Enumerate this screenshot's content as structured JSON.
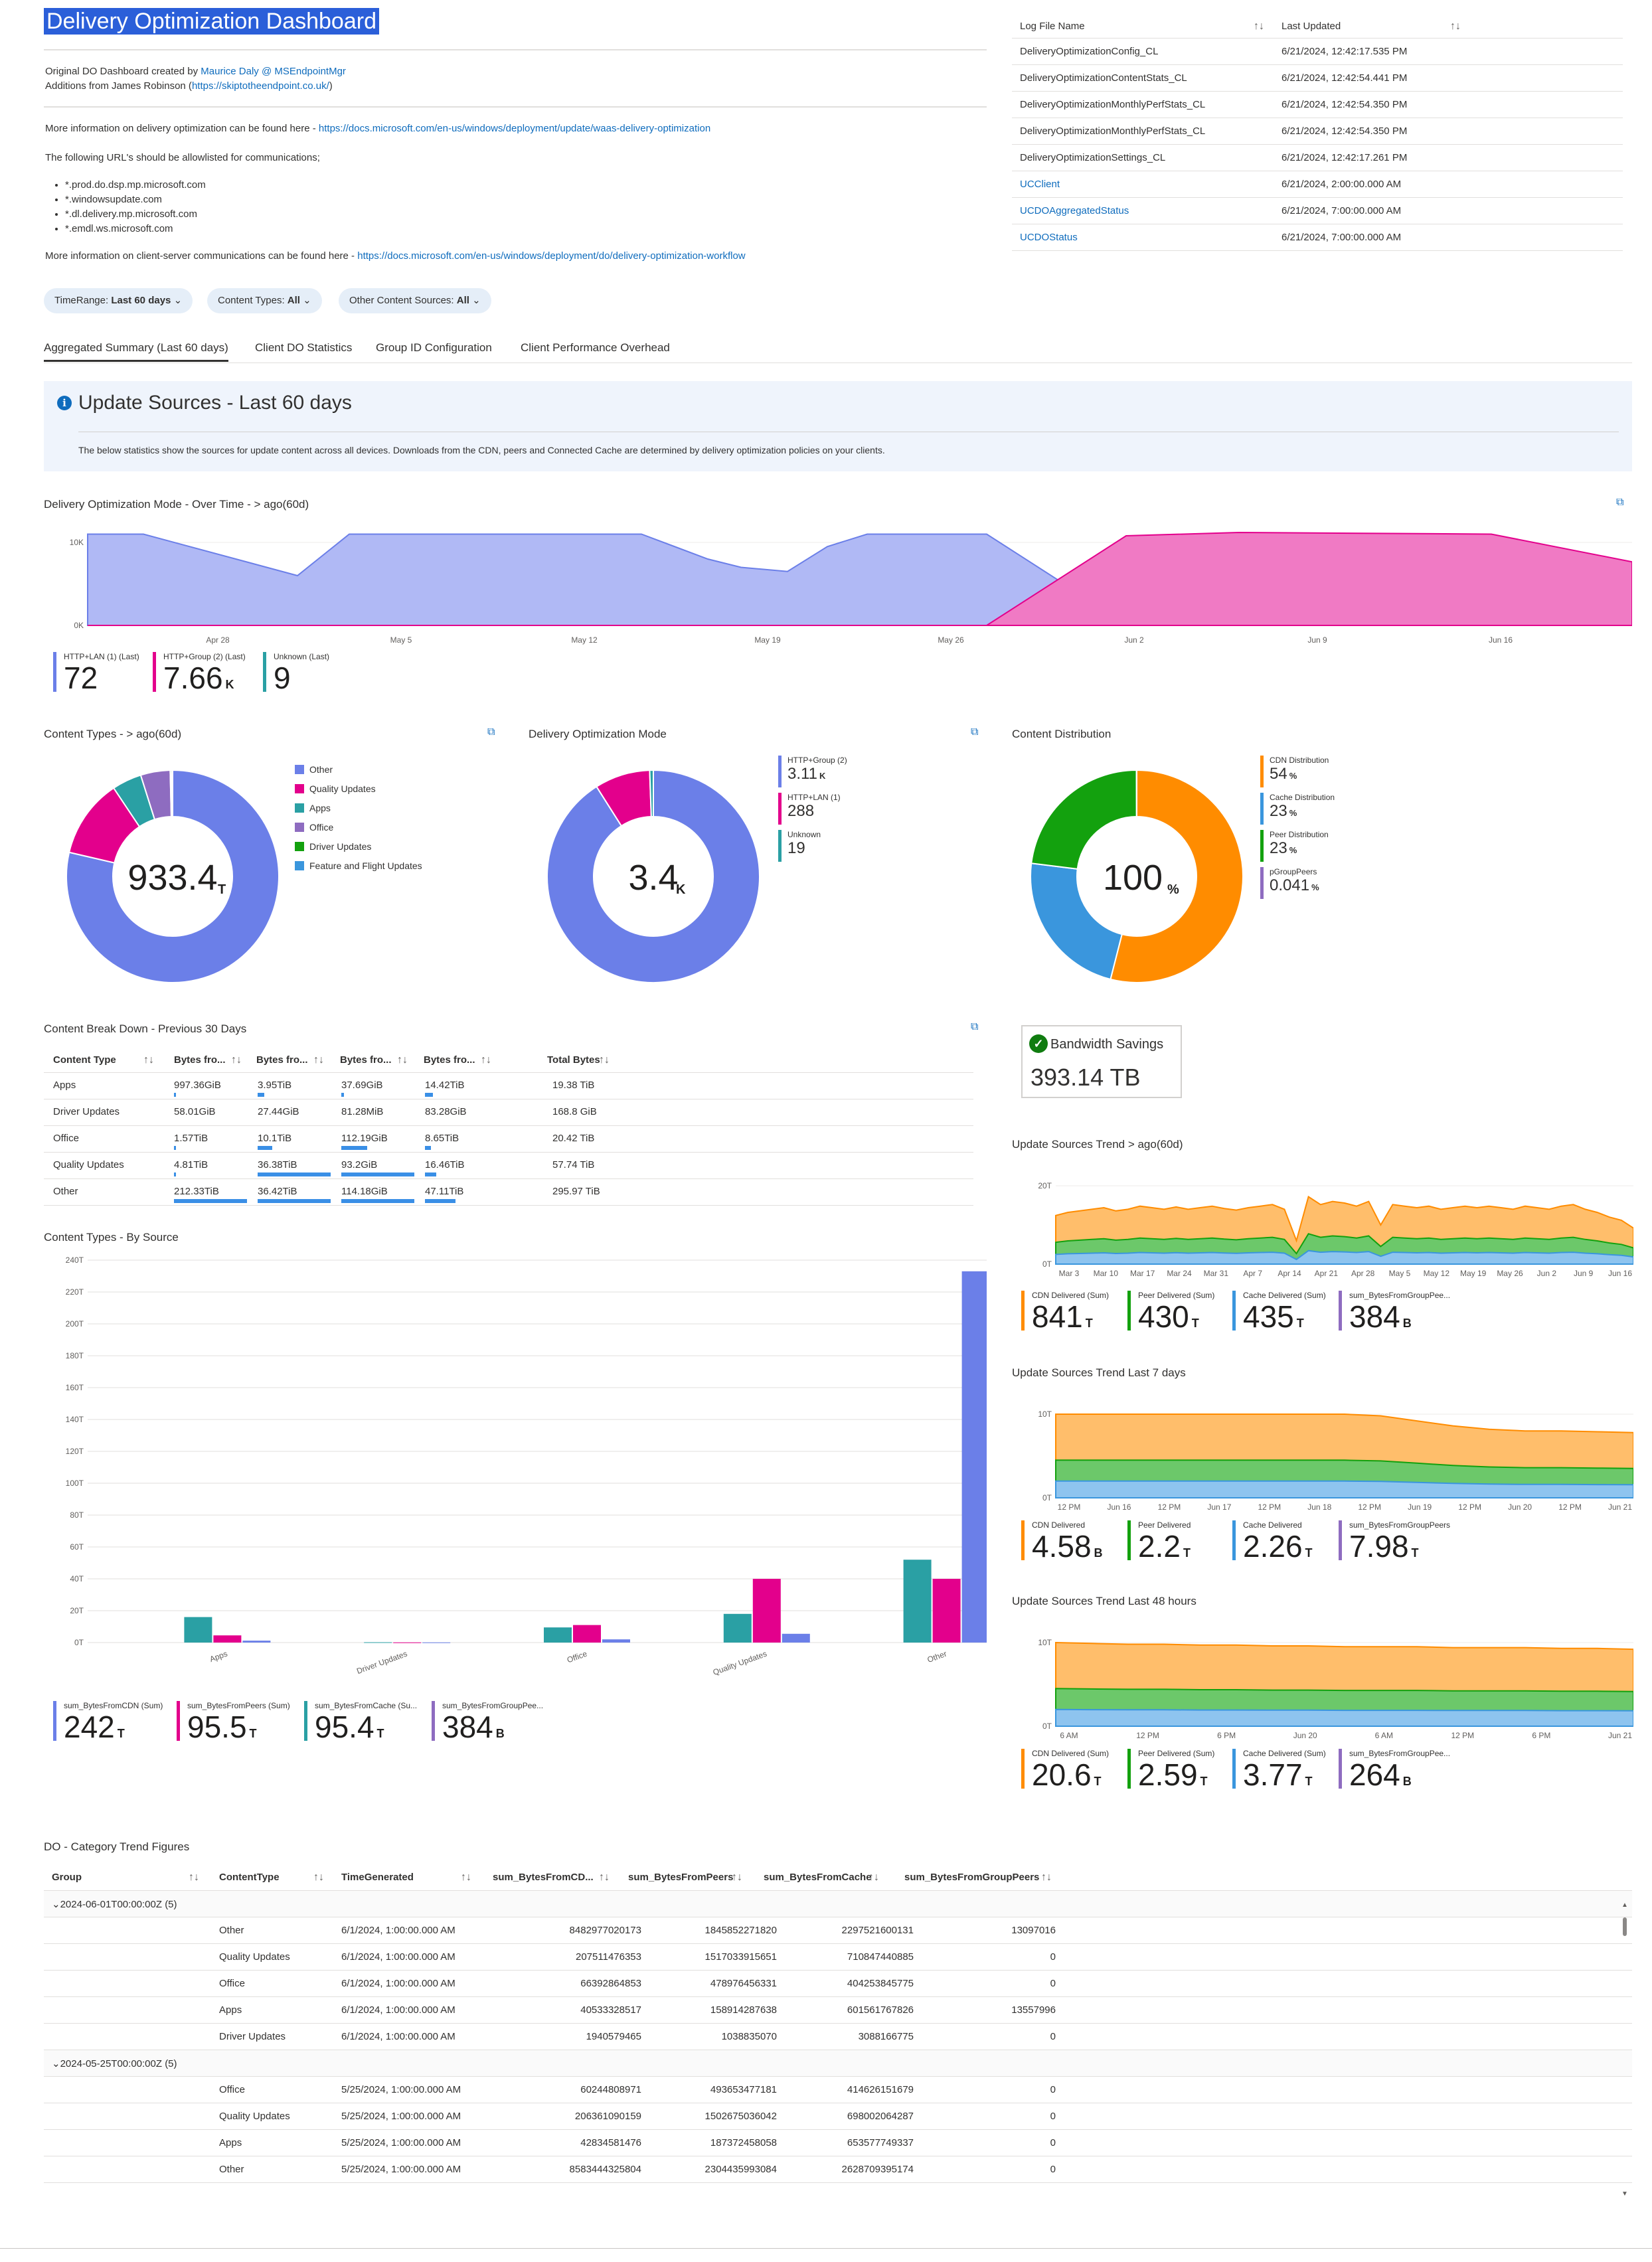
{
  "header": {
    "title": "Delivery Optimization Dashboard",
    "created_prefix": "Original DO Dashboard created by ",
    "created_link": "Maurice Daly @ MSEndpointMgr",
    "additions_prefix": "Additions from James Robinson (",
    "additions_link": "https://skiptotheendpoint.co.uk/",
    "additions_suffix": ")",
    "info1_prefix": "More information on delivery optimization can be found here - ",
    "info1_link": "https://docs.microsoft.com/en-us/windows/deployment/update/waas-delivery-optimization",
    "allowlist_text": "The following URL's should be allowlisted for communications;",
    "urls": [
      "*.prod.do.dsp.mp.microsoft.com",
      "*.windowsupdate.com",
      "*.dl.delivery.mp.microsoft.com",
      "*.emdl.ws.microsoft.com"
    ],
    "info2_prefix": "More information on client-server communications can be found here - ",
    "info2_link": "https://docs.microsoft.com/en-us/windows/deployment/do/delivery-optimization-workflow"
  },
  "log_table": {
    "col1": "Log File Name",
    "col2": "Last Updated",
    "rows": [
      {
        "name": "DeliveryOptimizationConfig_CL",
        "updated": "6/21/2024, 12:42:17.535 PM",
        "link": false
      },
      {
        "name": "DeliveryOptimizationContentStats_CL",
        "updated": "6/21/2024, 12:42:54.441 PM",
        "link": false
      },
      {
        "name": "DeliveryOptimizationMonthlyPerfStats_CL",
        "updated": "6/21/2024, 12:42:54.350 PM",
        "link": false
      },
      {
        "name": "DeliveryOptimizationMonthlyPerfStats_CL",
        "updated": "6/21/2024, 12:42:54.350 PM",
        "link": false
      },
      {
        "name": "DeliveryOptimizationSettings_CL",
        "updated": "6/21/2024, 12:42:17.261 PM",
        "link": false
      },
      {
        "name": "UCClient",
        "updated": "6/21/2024, 2:00:00.000 AM",
        "link": true
      },
      {
        "name": "UCDOAggregatedStatus",
        "updated": "6/21/2024, 7:00:00.000 AM",
        "link": true
      },
      {
        "name": "UCDOStatus",
        "updated": "6/21/2024, 7:00:00.000 AM",
        "link": true
      }
    ]
  },
  "params": [
    {
      "label": "TimeRange:",
      "value": "Last 60 days"
    },
    {
      "label": "Content Types:",
      "value": "All"
    },
    {
      "label": "Other Content Sources:",
      "value": "All"
    }
  ],
  "tabs": [
    "Aggregated Summary (Last 60 days)",
    "Client DO Statistics",
    "Group ID Configuration",
    "Client Performance Overhead"
  ],
  "info_box": {
    "title": "Update Sources - Last 60 days",
    "body": "The below statistics show the sources for update content across all devices. Downloads from the CDN, peers and Connected Cache are determined by delivery optimization policies on your clients."
  },
  "mode_over_time": {
    "title": "Delivery Optimization Mode - Over Time - > ago(60d)",
    "y_ticks": [
      "10K",
      "0K"
    ],
    "x_ticks": [
      "Apr 28",
      "May 5",
      "May 12",
      "May 19",
      "May 26",
      "Jun 2",
      "Jun 9",
      "Jun 16"
    ],
    "tiles": [
      {
        "label": "HTTP+LAN (1) (Last)",
        "value": "72",
        "unit": "",
        "color": "#6b7fe8"
      },
      {
        "label": "HTTP+Group (2) (Last)",
        "value": "7.66",
        "unit": "K",
        "color": "#e3008c"
      },
      {
        "label": "Unknown (Last)",
        "value": "9",
        "unit": "",
        "color": "#2aa0a4"
      }
    ]
  },
  "content_types": {
    "title": "Content Types - > ago(60d)",
    "center_value": "933.4",
    "center_unit": "T",
    "legend": [
      {
        "name": "Other",
        "color": "#6b7fe8"
      },
      {
        "name": "Quality Updates",
        "color": "#e3008c"
      },
      {
        "name": "Apps",
        "color": "#2aa0a4"
      },
      {
        "name": "Office",
        "color": "#8e6cc0"
      },
      {
        "name": "Driver Updates",
        "color": "#13a10e"
      },
      {
        "name": "Feature and Flight Updates",
        "color": "#3a96dd"
      }
    ]
  },
  "do_mode": {
    "title": "Delivery Optimization Mode",
    "center_value": "3.4",
    "center_unit": "K",
    "legend": [
      {
        "label": "HTTP+Group (2)",
        "value": "3.11",
        "unit": "K",
        "color": "#6b7fe8"
      },
      {
        "label": "HTTP+LAN (1)",
        "value": "288",
        "unit": "",
        "color": "#e3008c"
      },
      {
        "label": "Unknown",
        "value": "19",
        "unit": "",
        "color": "#2aa0a4"
      }
    ]
  },
  "content_distribution": {
    "title": "Content Distribution",
    "center_value": "100",
    "center_unit": "%",
    "legend": [
      {
        "label": "CDN Distribution",
        "value": "54",
        "unit": "%",
        "color": "#ff8c00"
      },
      {
        "label": "Cache Distribution",
        "value": "23",
        "unit": "%",
        "color": "#3a96dd"
      },
      {
        "label": "Peer Distribution",
        "value": "23",
        "unit": "%",
        "color": "#13a10e"
      },
      {
        "label": "pGroupPeers",
        "value": "0.041",
        "unit": "%",
        "color": "#8e6cc0"
      }
    ]
  },
  "breakdown": {
    "title": "Content Break Down - Previous 30 Days",
    "headers": [
      "Content Type",
      "Bytes fro...",
      "Bytes fro...",
      "Bytes fro...",
      "Bytes fro...",
      "Total Bytes"
    ],
    "rows": [
      {
        "type": "Apps",
        "c1": "997.36GiB",
        "c2": "3.95TiB",
        "c3": "37.69GiB",
        "c4": "14.42TiB",
        "total": "19.38 TiB"
      },
      {
        "type": "Driver Updates",
        "c1": "58.01GiB",
        "c2": "27.44GiB",
        "c3": "81.28MiB",
        "c4": "83.28GiB",
        "total": "168.8 GiB"
      },
      {
        "type": "Office",
        "c1": "1.57TiB",
        "c2": "10.1TiB",
        "c3": "112.19GiB",
        "c4": "8.65TiB",
        "total": "20.42 TiB"
      },
      {
        "type": "Quality Updates",
        "c1": "4.81TiB",
        "c2": "36.38TiB",
        "c3": "93.2GiB",
        "c4": "16.46TiB",
        "total": "57.74 TiB"
      },
      {
        "type": "Other",
        "c1": "212.33TiB",
        "c2": "36.42TiB",
        "c3": "114.18GiB",
        "c4": "47.11TiB",
        "total": "295.97 TiB"
      }
    ]
  },
  "bandwidth": {
    "title": "Bandwidth Savings",
    "value": "393.14 TB"
  },
  "by_source": {
    "title": "Content Types - By Source",
    "tiles": [
      {
        "label": "sum_BytesFromCDN (Sum)",
        "value": "242",
        "unit": "T",
        "color": "#6b7fe8"
      },
      {
        "label": "sum_BytesFromPeers (Sum)",
        "value": "95.5",
        "unit": "T",
        "color": "#e3008c"
      },
      {
        "label": "sum_BytesFromCache (Su...",
        "value": "95.4",
        "unit": "T",
        "color": "#2aa0a4"
      },
      {
        "label": "sum_BytesFromGroupPee...",
        "value": "384",
        "unit": "B",
        "color": "#8e6cc0"
      }
    ]
  },
  "trend60": {
    "title": "Update Sources Trend > ago(60d)",
    "y_ticks": [
      "20T",
      "0T"
    ],
    "x_ticks": [
      "Mar 3",
      "Mar 10",
      "Mar 17",
      "Mar 24",
      "Mar 31",
      "Apr 7",
      "Apr 14",
      "Apr 21",
      "Apr 28",
      "May 5",
      "May 12",
      "May 19",
      "May 26",
      "Jun 2",
      "Jun 9",
      "Jun 16"
    ],
    "tiles": [
      {
        "label": "CDN Delivered (Sum)",
        "value": "841",
        "unit": "T",
        "color": "#ff8c00"
      },
      {
        "label": "Peer Delivered (Sum)",
        "value": "430",
        "unit": "T",
        "color": "#13a10e"
      },
      {
        "label": "Cache Delivered (Sum)",
        "value": "435",
        "unit": "T",
        "color": "#3a96dd"
      },
      {
        "label": "sum_BytesFromGroupPee...",
        "value": "384",
        "unit": "B",
        "color": "#8e6cc0"
      }
    ]
  },
  "trend7": {
    "title": "Update Sources Trend Last 7 days",
    "y_ticks": [
      "10T",
      "0T"
    ],
    "x_ticks": [
      "12 PM",
      "Jun 16",
      "12 PM",
      "Jun 17",
      "12 PM",
      "Jun 18",
      "12 PM",
      "Jun 19",
      "12 PM",
      "Jun 20",
      "12 PM",
      "Jun 21"
    ],
    "tiles": [
      {
        "label": "CDN Delivered",
        "value": "4.58",
        "unit": "B",
        "color": "#ff8c00"
      },
      {
        "label": "Peer Delivered",
        "value": "2.2",
        "unit": "T",
        "color": "#13a10e"
      },
      {
        "label": "Cache Delivered",
        "value": "2.26",
        "unit": "T",
        "color": "#3a96dd"
      },
      {
        "label": "sum_BytesFromGroupPeers",
        "value": "7.98",
        "unit": "T",
        "color": "#8e6cc0"
      }
    ]
  },
  "trend48": {
    "title": "Update Sources Trend Last 48 hours",
    "y_ticks": [
      "10T",
      "0T"
    ],
    "x_ticks": [
      "6 AM",
      "12 PM",
      "6 PM",
      "Jun 20",
      "6 AM",
      "12 PM",
      "6 PM",
      "Jun 21"
    ],
    "tiles": [
      {
        "label": "CDN Delivered (Sum)",
        "value": "20.6",
        "unit": "T",
        "color": "#ff8c00"
      },
      {
        "label": "Peer Delivered (Sum)",
        "value": "2.59",
        "unit": "T",
        "color": "#13a10e"
      },
      {
        "label": "Cache Delivered (Sum)",
        "value": "3.77",
        "unit": "T",
        "color": "#3a96dd"
      },
      {
        "label": "sum_BytesFromGroupPee...",
        "value": "264",
        "unit": "B",
        "color": "#8e6cc0"
      }
    ]
  },
  "category": {
    "title": "DO - Category Trend Figures",
    "headers": [
      "Group",
      "ContentType",
      "TimeGenerated",
      "sum_BytesFromCD...",
      "sum_BytesFromPeers",
      "sum_BytesFromCache",
      "sum_BytesFromGroupPeers"
    ],
    "groups": [
      {
        "label": "2024-06-01T00:00:00Z (5)",
        "rows": [
          [
            "Other",
            "6/1/2024, 1:00:00.000 AM",
            "8482977020173",
            "1845852271820",
            "2297521600131",
            "13097016"
          ],
          [
            "Quality Updates",
            "6/1/2024, 1:00:00.000 AM",
            "207511476353",
            "1517033915651",
            "710847440885",
            "0"
          ],
          [
            "Office",
            "6/1/2024, 1:00:00.000 AM",
            "66392864853",
            "478976456331",
            "404253845775",
            "0"
          ],
          [
            "Apps",
            "6/1/2024, 1:00:00.000 AM",
            "40533328517",
            "158914287638",
            "601561767826",
            "13557996"
          ],
          [
            "Driver Updates",
            "6/1/2024, 1:00:00.000 AM",
            "1940579465",
            "1038835070",
            "3088166775",
            "0"
          ]
        ]
      },
      {
        "label": "2024-05-25T00:00:00Z (5)",
        "rows": [
          [
            "Office",
            "5/25/2024, 1:00:00.000 AM",
            "60244808971",
            "493653477181",
            "414626151679",
            "0"
          ],
          [
            "Quality Updates",
            "5/25/2024, 1:00:00.000 AM",
            "206361090159",
            "1502675036042",
            "698002064287",
            "0"
          ],
          [
            "Apps",
            "5/25/2024, 1:00:00.000 AM",
            "42834581476",
            "187372458058",
            "653577749337",
            "0"
          ],
          [
            "Other",
            "5/25/2024, 1:00:00.000 AM",
            "8583444325804",
            "2304435993084",
            "2628709395174",
            "0"
          ]
        ]
      }
    ]
  },
  "chart_data": [
    {
      "type": "area",
      "title": "Delivery Optimization Mode - Over Time - > ago(60d)",
      "x": [
        "Apr 21",
        "Apr 28",
        "May 3",
        "May 5",
        "May 12",
        "May 15",
        "May 17",
        "May 19",
        "May 21",
        "May 26",
        "May 30",
        "Jun 2",
        "Jun 9",
        "Jun 16",
        "Jun 20"
      ],
      "series": [
        {
          "name": "HTTP+LAN (1)",
          "color": "#6b7fe8",
          "values": [
            11000,
            11000,
            6000,
            11000,
            11000,
            8000,
            7000,
            6500,
            9500,
            11000,
            11000,
            200,
            100,
            100,
            72
          ]
        },
        {
          "name": "HTTP+Group (2)",
          "color": "#e3008c",
          "values": [
            0,
            0,
            0,
            0,
            0,
            0,
            0,
            0,
            0,
            0,
            0,
            10800,
            11200,
            11000,
            7660
          ]
        }
      ],
      "ylim": [
        0,
        12000
      ]
    },
    {
      "type": "pie",
      "title": "Content Types - > ago(60d)",
      "categories": [
        "Other",
        "Quality Updates",
        "Apps",
        "Office",
        "Driver Updates",
        "Feature and Flight Updates"
      ],
      "values": [
        734,
        112,
        42,
        42,
        2,
        1.4
      ]
    },
    {
      "type": "pie",
      "title": "Delivery Optimization Mode",
      "categories": [
        "HTTP+Group (2)",
        "HTTP+LAN (1)",
        "Unknown"
      ],
      "values": [
        3110,
        288,
        19
      ]
    },
    {
      "type": "pie",
      "title": "Content Distribution",
      "categories": [
        "CDN Distribution",
        "Cache Distribution",
        "Peer Distribution",
        "pGroupPeers"
      ],
      "values": [
        54,
        23,
        23,
        0.041
      ]
    },
    {
      "type": "bar",
      "title": "Content Types - By Source",
      "categories": [
        "Apps",
        "Driver Updates",
        "Office",
        "Quality Updates",
        "Other"
      ],
      "series": [
        {
          "name": "sum_BytesFromCache",
          "color": "#2aa0a4",
          "values": [
            16,
            0.2,
            9.5,
            18,
            52
          ]
        },
        {
          "name": "sum_BytesFromPeers",
          "color": "#e3008c",
          "values": [
            4.5,
            0.1,
            11,
            40,
            40
          ]
        },
        {
          "name": "sum_BytesFromCDN",
          "color": "#6b7fe8",
          "values": [
            1.2,
            0.1,
            2,
            5.5,
            233
          ]
        }
      ],
      "y_ticks": [
        "240T",
        "220T",
        "200T",
        "180T",
        "160T",
        "140T",
        "120T",
        "100T",
        "80T",
        "60T",
        "40T",
        "20T",
        "0T"
      ],
      "ylim": [
        0,
        240
      ]
    },
    {
      "type": "area",
      "title": "Update Sources Trend > ago(60d)",
      "series": [
        {
          "name": "CDN Delivered",
          "color": "#ff8c00"
        },
        {
          "name": "Peer Delivered",
          "color": "#13a10e"
        },
        {
          "name": "Cache Delivered",
          "color": "#3a96dd"
        }
      ],
      "ylim": [
        0,
        25
      ]
    },
    {
      "type": "area",
      "title": "Update Sources Trend Last 7 days",
      "series": [
        {
          "name": "CDN Delivered",
          "color": "#ff8c00"
        },
        {
          "name": "Peer Delivered",
          "color": "#13a10e"
        },
        {
          "name": "Cache Delivered",
          "color": "#3a96dd"
        }
      ],
      "ylim": [
        0,
        12
      ]
    },
    {
      "type": "area",
      "title": "Update Sources Trend Last 48 hours",
      "series": [
        {
          "name": "CDN Delivered",
          "color": "#ff8c00"
        },
        {
          "name": "Peer Delivered",
          "color": "#13a10e"
        },
        {
          "name": "Cache Delivered",
          "color": "#3a96dd"
        }
      ],
      "ylim": [
        0,
        12
      ]
    }
  ]
}
